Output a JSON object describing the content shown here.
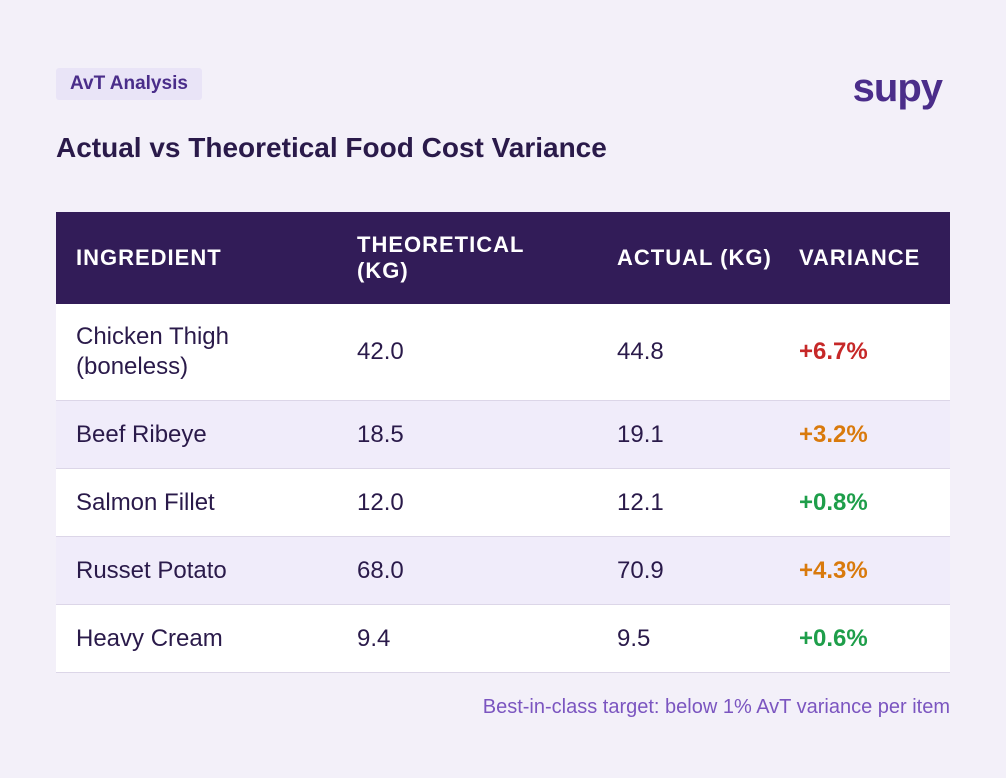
{
  "header": {
    "badge": "AvT Analysis",
    "logo": "supy",
    "title": "Actual vs Theoretical Food Cost Variance"
  },
  "table": {
    "columns": [
      "INGREDIENT",
      "THEORETICAL (KG)",
      "ACTUAL (KG)",
      "VARIANCE"
    ],
    "rows": [
      [
        "Chicken Thigh (boneless)",
        "42.0",
        "44.8",
        "+6.7%"
      ],
      [
        "Beef Ribeye",
        "18.5",
        "19.1",
        "+3.2%"
      ],
      [
        "Salmon Fillet",
        "12.0",
        "12.1",
        "+0.8%"
      ],
      [
        "Russet Potato",
        "68.0",
        "70.9",
        "+4.3%"
      ],
      [
        "Heavy Cream",
        "9.4",
        "9.5",
        "+0.6%"
      ]
    ],
    "variance_colors": [
      "#c62828",
      "#d97a0c",
      "#1e9e4a",
      "#d97a0c",
      "#1e9e4a"
    ]
  },
  "footer": {
    "note": "Best-in-class target: below 1% AvT variance per item"
  }
}
